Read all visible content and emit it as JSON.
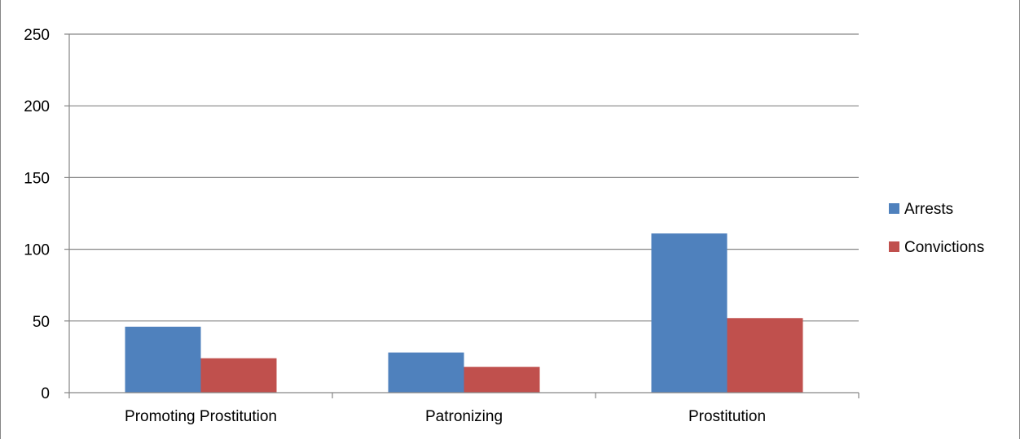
{
  "chart_data": {
    "type": "bar",
    "title": "",
    "xlabel": "",
    "ylabel": "",
    "categories": [
      "Promoting Prostitution",
      "Patronizing",
      "Prostitution"
    ],
    "series": [
      {
        "name": "Arrests",
        "values": [
          46,
          28,
          111
        ],
        "color": "#4F81BD"
      },
      {
        "name": "Convictions",
        "values": [
          24,
          18,
          52
        ],
        "color": "#C0504D"
      }
    ],
    "ylim": [
      0,
      250
    ],
    "yticks": [
      "0",
      "50",
      "100",
      "150",
      "200",
      "250"
    ],
    "grid": true,
    "legend_position": "right"
  }
}
